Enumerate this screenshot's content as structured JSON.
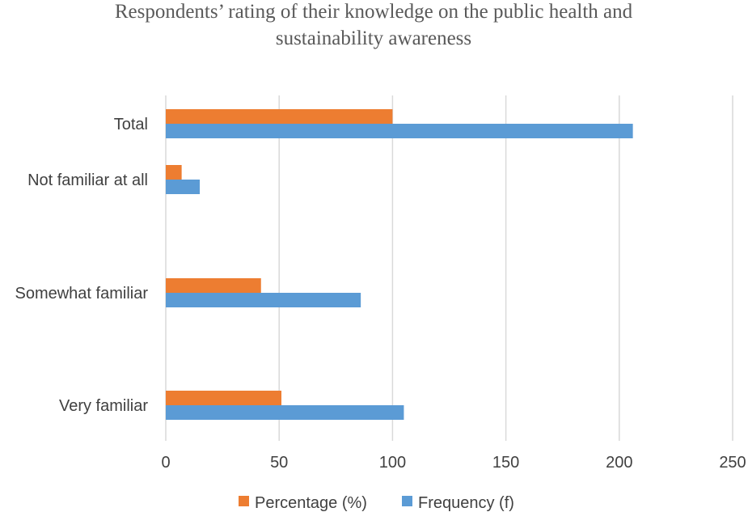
{
  "chart_data": {
    "type": "bar",
    "orientation": "horizontal",
    "title": "Respondents’ rating of their knowledge on the public health and sustainability awareness",
    "title_lines": [
      "Respondents’ rating of their knowledge on the public health and",
      "sustainability awareness"
    ],
    "categories": [
      "Total",
      "Not familiar at all",
      "Somewhat familiar",
      "Very familiar"
    ],
    "series": [
      {
        "name": "Percentage  (%)",
        "color": "#ed7d31",
        "values": [
          100,
          7,
          42,
          51
        ]
      },
      {
        "name": "Frequency  (f)",
        "color": "#5b9bd5",
        "values": [
          206,
          15,
          86,
          105
        ]
      }
    ],
    "xlim": [
      0,
      250
    ],
    "xticks": [
      0,
      50,
      100,
      150,
      200,
      250
    ],
    "grid": true,
    "legend_position": "bottom"
  }
}
